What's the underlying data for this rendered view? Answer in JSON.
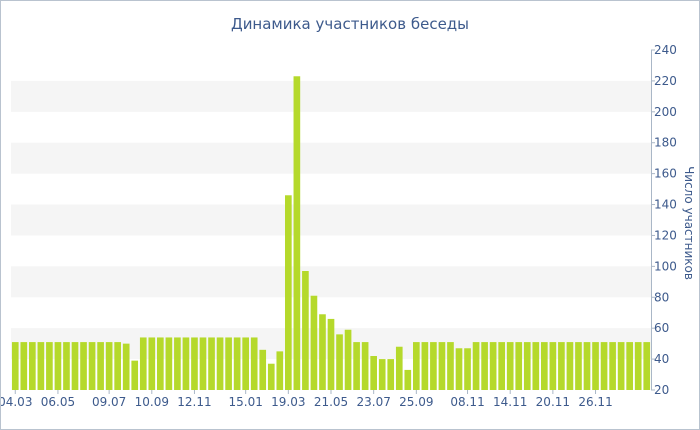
{
  "chart_data": {
    "type": "bar",
    "title": "Динамика участников беседы",
    "xlabel": "",
    "ylabel": "Число участников",
    "ylim": [
      20,
      240
    ],
    "yticks": [
      20,
      40,
      60,
      80,
      100,
      120,
      140,
      160,
      180,
      200,
      220,
      240
    ],
    "y_axis_side": "right",
    "grid": "alternating horizontal bands",
    "bar_color": "#b5d92b",
    "band_color": "#f5f5f5",
    "text_color": "#3d5a8c",
    "x_tick_labels": [
      "04.03",
      "06.05",
      "09.07",
      "10.09",
      "12.11",
      "15.01",
      "19.03",
      "21.05",
      "23.07",
      "25.09",
      "08.11",
      "14.11",
      "20.11",
      "26.11"
    ],
    "x_tick_bar_index": [
      0,
      5,
      11,
      16,
      21,
      27,
      32,
      37,
      42,
      47,
      53,
      58,
      63,
      68
    ],
    "values": [
      51,
      51,
      51,
      51,
      51,
      51,
      51,
      51,
      51,
      51,
      51,
      51,
      51,
      50,
      39,
      54,
      54,
      54,
      54,
      54,
      54,
      54,
      54,
      54,
      54,
      54,
      54,
      54,
      54,
      46,
      37,
      45,
      146,
      223,
      97,
      81,
      69,
      66,
      56,
      59,
      51,
      51,
      42,
      40,
      40,
      48,
      33,
      51,
      51,
      51,
      51,
      51,
      47,
      47,
      51,
      51,
      51,
      51,
      51,
      51,
      51,
      51,
      51,
      51,
      51,
      51,
      51,
      51,
      51,
      51,
      51,
      51,
      51,
      51,
      51
    ]
  }
}
